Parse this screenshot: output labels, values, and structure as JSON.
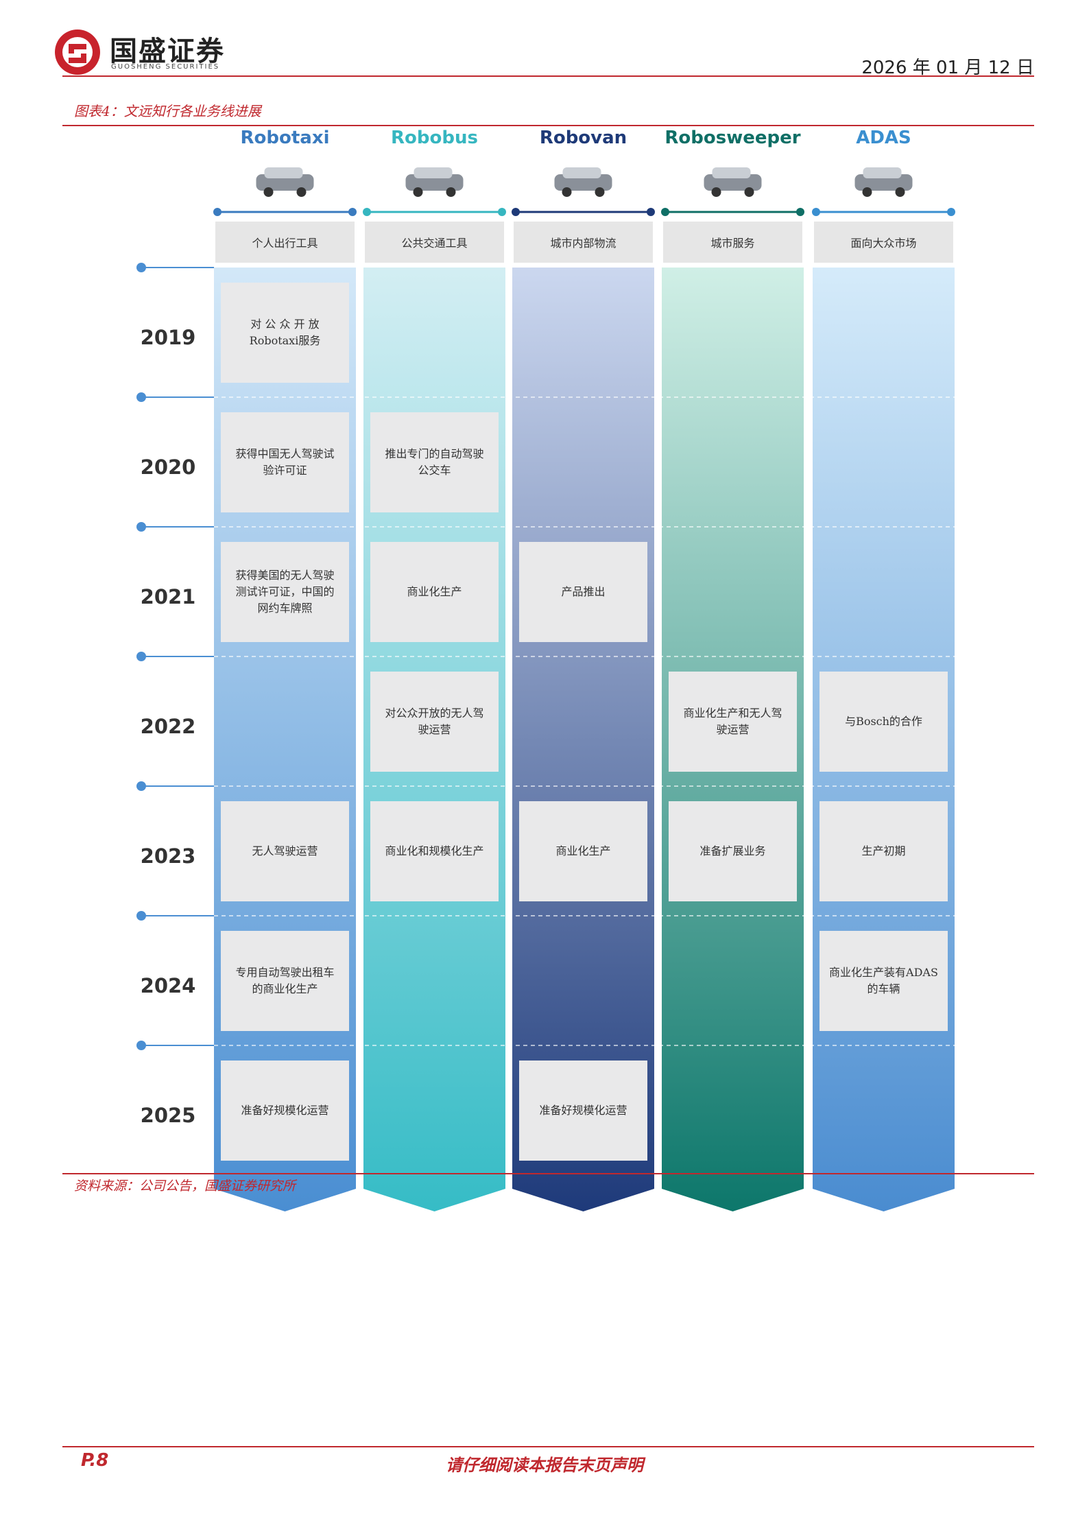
{
  "header": {
    "company": "国盛证券",
    "company_en": "GUOSHENG SECURITIES",
    "date": "2026 年 01 月 12 日"
  },
  "figure": {
    "caption": "图表4：文远知行各业务线进展",
    "columns": [
      {
        "name": "Robotaxi",
        "subtitle": "个人出行工具"
      },
      {
        "name": "Robobus",
        "subtitle": "公共交通工具"
      },
      {
        "name": "Robovan",
        "subtitle": "城市内部物流"
      },
      {
        "name": "Robosweeper",
        "subtitle": "城市服务"
      },
      {
        "name": "ADAS",
        "subtitle": "面向大众市场"
      }
    ],
    "rows": [
      {
        "year": "2019",
        "cells": [
          "对 公 众 开 放 Robotaxi服务",
          null,
          null,
          null,
          null
        ]
      },
      {
        "year": "2020",
        "cells": [
          "获得中国无人驾驶试验许可证",
          "推出专门的自动驾驶公交车",
          null,
          null,
          null
        ]
      },
      {
        "year": "2021",
        "cells": [
          "获得美国的无人驾驶测试许可证，中国的网约车牌照",
          "商业化生产",
          "产品推出",
          null,
          null
        ]
      },
      {
        "year": "2022",
        "cells": [
          null,
          "对公众开放的无人驾驶运营",
          null,
          "商业化生产和无人驾驶运营",
          "与Bosch的合作"
        ]
      },
      {
        "year": "2023",
        "cells": [
          "无人驾驶运营",
          "商业化和规模化生产",
          "商业化生产",
          "准备扩展业务",
          "生产初期"
        ]
      },
      {
        "year": "2024",
        "cells": [
          "专用自动驾驶出租车的商业化生产",
          null,
          null,
          null,
          "商业化生产装有ADAS的车辆"
        ]
      },
      {
        "year": "2025",
        "cells": [
          "准备好规模化运营",
          null,
          "准备好规模化运营",
          null,
          null
        ]
      }
    ],
    "source": "资料来源：公司公告，国盛证券研究所"
  },
  "footer": {
    "page": "P.8",
    "notice": "请仔细阅读本报告末页声明"
  }
}
